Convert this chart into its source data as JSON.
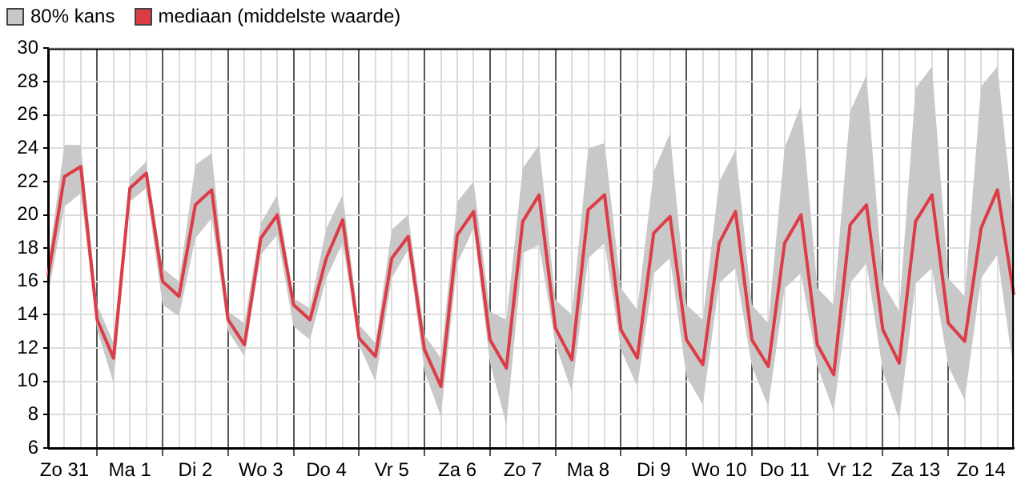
{
  "chart_data": {
    "type": "line",
    "categories": [
      null,
      "Zo 31",
      null,
      null,
      null,
      "Ma 1",
      null,
      null,
      null,
      "Di 2",
      null,
      null,
      null,
      "Wo 3",
      null,
      null,
      null,
      "Do 4",
      null,
      null,
      null,
      "Vr 5",
      null,
      null,
      null,
      "Za 6",
      null,
      null,
      null,
      "Zo 7",
      null,
      null,
      null,
      "Ma 8",
      null,
      null,
      null,
      "Di 9",
      null,
      null,
      null,
      "Wo 10",
      null,
      null,
      null,
      "Do 11",
      null,
      null,
      null,
      "Vr 12",
      null,
      null,
      null,
      "Za 13",
      null,
      null,
      null,
      "Zo 14",
      null,
      null
    ],
    "series": [
      {
        "name": "mediaan (middelste waarde)",
        "color": "#dc3c46",
        "values": [
          16.3,
          22.3,
          22.9,
          13.7,
          11.4,
          21.6,
          22.5,
          16.0,
          15.1,
          20.6,
          21.5,
          13.7,
          12.2,
          18.6,
          20.0,
          14.6,
          13.7,
          17.4,
          19.7,
          12.6,
          11.5,
          17.4,
          18.7,
          11.9,
          9.7,
          18.8,
          20.2,
          12.5,
          10.8,
          19.6,
          21.2,
          13.2,
          11.3,
          20.3,
          21.2,
          13.1,
          11.4,
          18.9,
          19.9,
          12.5,
          11.0,
          18.3,
          20.2,
          12.5,
          10.9,
          18.3,
          20.0,
          12.2,
          10.4,
          19.4,
          20.6,
          13.1,
          11.1,
          19.6,
          21.2,
          13.5,
          12.4,
          19.2,
          21.5,
          15.2
        ],
        "upper": [
          17.1,
          24.2,
          24.2,
          14.6,
          12.3,
          22.2,
          23.2,
          16.8,
          16.0,
          23.0,
          23.7,
          14.2,
          13.5,
          19.5,
          21.2,
          15.0,
          14.4,
          19.2,
          21.2,
          13.4,
          12.3,
          19.1,
          20.0,
          12.8,
          11.4,
          20.8,
          22.0,
          14.2,
          13.7,
          22.8,
          24.2,
          14.9,
          14.0,
          24.0,
          24.3,
          15.6,
          14.3,
          22.6,
          24.9,
          14.6,
          13.7,
          22.0,
          23.9,
          14.6,
          13.5,
          24.0,
          26.6,
          15.6,
          14.6,
          26.2,
          28.4,
          15.9,
          14.2,
          27.6,
          28.9,
          16.2,
          15.1,
          27.7,
          28.9,
          19.6
        ],
        "lower": [
          15.2,
          20.5,
          21.3,
          13.1,
          9.9,
          20.8,
          21.6,
          14.6,
          13.9,
          18.6,
          19.8,
          13.0,
          11.5,
          17.6,
          18.8,
          13.3,
          12.5,
          16.2,
          18.3,
          12.2,
          10.0,
          16.2,
          17.9,
          10.6,
          7.9,
          17.1,
          19.2,
          11.1,
          7.4,
          17.7,
          18.2,
          12.2,
          9.4,
          17.4,
          18.3,
          11.9,
          9.7,
          16.5,
          17.4,
          10.3,
          8.6,
          15.9,
          16.8,
          10.9,
          8.5,
          15.6,
          16.5,
          10.9,
          8.2,
          15.9,
          17.1,
          10.6,
          7.7,
          15.9,
          16.8,
          10.9,
          8.9,
          16.2,
          17.6,
          10.6
        ]
      }
    ],
    "annotations": [
      "80% kans"
    ],
    "ylim": [
      6,
      30
    ],
    "yticks": [
      6,
      8,
      10,
      12,
      14,
      16,
      18,
      20,
      22,
      24,
      26,
      28,
      30
    ],
    "grid": true,
    "legend": "top left",
    "marker": "none"
  }
}
